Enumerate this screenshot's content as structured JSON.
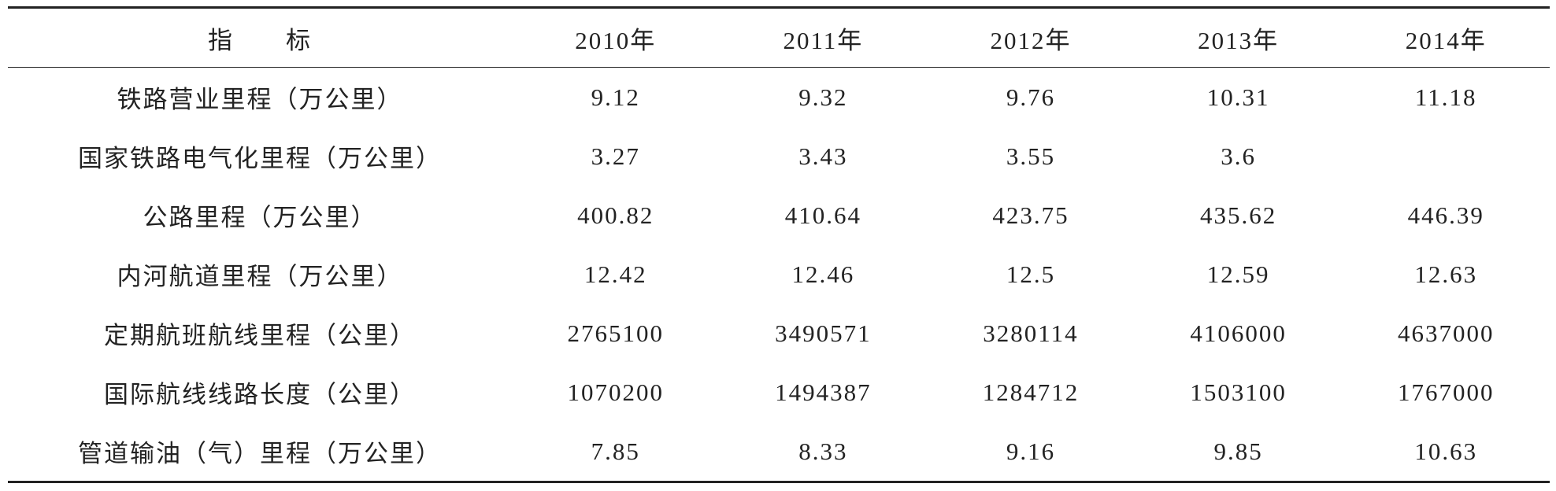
{
  "table": {
    "header": [
      "指　　标",
      "2010年",
      "2011年",
      "2012年",
      "2013年",
      "2014年"
    ],
    "rows": [
      [
        "铁路营业里程（万公里）",
        "9.12",
        "9.32",
        "9.76",
        "10.31",
        "11.18"
      ],
      [
        "国家铁路电气化里程（万公里）",
        "3.27",
        "3.43",
        "3.55",
        "3.6",
        null
      ],
      [
        "公路里程（万公里）",
        "400.82",
        "410.64",
        "423.75",
        "435.62",
        "446.39"
      ],
      [
        "内河航道里程（万公里）",
        "12.42",
        "12.46",
        "12.5",
        "12.59",
        "12.63"
      ],
      [
        "定期航班航线里程（公里）",
        "2765100",
        "3490571",
        "3280114",
        "4106000",
        "4637000"
      ],
      [
        "国际航线线路长度（公里）",
        "1070200",
        "1494387",
        "1284712",
        "1503100",
        "1767000"
      ],
      [
        "管道输油（气）里程（万公里）",
        "7.85",
        "8.33",
        "9.16",
        "9.85",
        "10.63"
      ]
    ]
  }
}
